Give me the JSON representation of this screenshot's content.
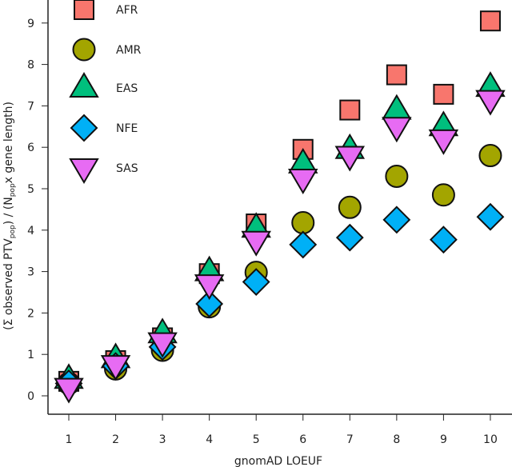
{
  "chart_data": {
    "type": "scatter",
    "xlabel": "gnomAD LOEUF",
    "ylabel_parts": [
      "(Σ observed PTV",
      "pop",
      ") / (N",
      "pop",
      "x gene length)"
    ],
    "x": [
      1,
      2,
      3,
      4,
      5,
      6,
      7,
      8,
      9,
      10
    ],
    "xticks": [
      "1",
      "2",
      "3",
      "4",
      "5",
      "6",
      "7",
      "8",
      "9",
      "10"
    ],
    "yticks": [
      "0",
      "1",
      "2",
      "3",
      "4",
      "5",
      "6",
      "7",
      "8",
      "9"
    ],
    "xlim": [
      0.55,
      10.5
    ],
    "ylim": [
      -0.45,
      9.5
    ],
    "grid": false,
    "legend_placement": "top-left",
    "series": [
      {
        "name": "AFR",
        "marker": "square",
        "color": "#f8766d",
        "values": [
          0.35,
          0.85,
          1.4,
          2.95,
          4.15,
          5.95,
          6.9,
          7.75,
          7.28,
          9.05
        ]
      },
      {
        "name": "AMR",
        "marker": "circle",
        "color": "#a3a500",
        "values": [
          0.3,
          0.65,
          1.1,
          2.15,
          2.98,
          4.18,
          4.55,
          5.3,
          4.85,
          5.8
        ]
      },
      {
        "name": "EAS",
        "marker": "triangle-up",
        "color": "#00bf7d",
        "values": [
          0.4,
          0.9,
          1.5,
          3.0,
          4.05,
          5.6,
          5.95,
          6.9,
          6.5,
          7.45
        ]
      },
      {
        "name": "NFE",
        "marker": "diamond",
        "color": "#00b0f6",
        "values": [
          0.3,
          0.72,
          1.18,
          2.22,
          2.75,
          3.65,
          3.82,
          4.25,
          3.77,
          4.32
        ]
      },
      {
        "name": "SAS",
        "marker": "triangle-down",
        "color": "#e76bf3",
        "values": [
          0.2,
          0.75,
          1.3,
          2.7,
          3.75,
          5.25,
          5.8,
          6.5,
          6.2,
          7.15
        ]
      }
    ]
  }
}
